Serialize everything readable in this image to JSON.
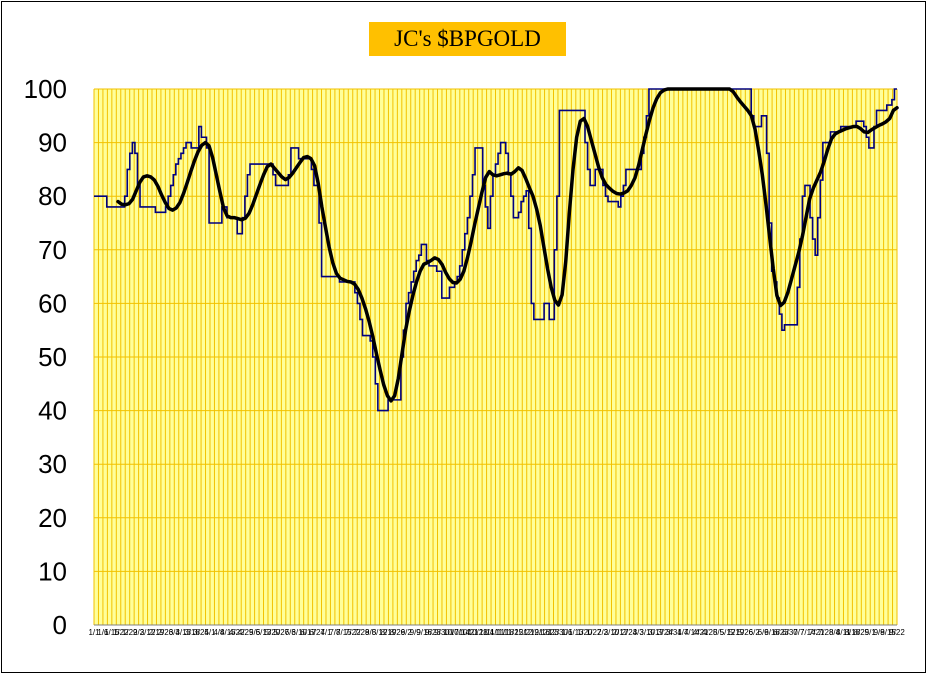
{
  "chart_data": {
    "type": "line",
    "title": "JC's $BPGOLD",
    "xlabel": "",
    "ylabel": "",
    "ylim": [
      0,
      100
    ],
    "y_ticks": [
      0,
      10,
      20,
      30,
      40,
      50,
      60,
      70,
      80,
      90,
      100
    ],
    "x_tick_labels": [
      "1/1",
      "1/6",
      "1/15",
      "1/22",
      "1/29",
      "2/3",
      "2/12",
      "2/19",
      "2/26",
      "3/4",
      "3/13",
      "3/18",
      "3/25",
      "4/1",
      "4/8",
      "4/15",
      "4/22",
      "4/29",
      "5/6",
      "5/13",
      "5/20",
      "5/27",
      "6/3",
      "6/10",
      "6/17",
      "6/24",
      "7/1",
      "7/8",
      "7/15",
      "7/22",
      "7/29",
      "8/5",
      "8/12",
      "8/19",
      "8/26",
      "9/2",
      "9/9",
      "9/16",
      "9/23",
      "9/30",
      "10/7",
      "10/14",
      "10/21",
      "10/28",
      "11/4",
      "11/11",
      "11/18",
      "11/25",
      "12/2",
      "12/9",
      "12/16",
      "12/23",
      "12/30",
      "1/6",
      "1/13",
      "1/20",
      "1/27",
      "2/3",
      "2/10",
      "2/17",
      "2/24",
      "3/3",
      "3/10",
      "3/17",
      "3/24",
      "3/31",
      "4/7",
      "4/14",
      "4/21",
      "4/28",
      "5/5",
      "5/12",
      "5/19",
      "5/26",
      "6/2",
      "6/9",
      "6/16",
      "6/23",
      "6/30",
      "7/7",
      "7/14",
      "7/21",
      "7/28",
      "8/4",
      "8/11",
      "8/18",
      "8/25",
      "9/1",
      "9/8",
      "9/15",
      "9/22"
    ],
    "grid": true,
    "background": "#ffff99",
    "grid_color": "#f2c200",
    "series": [
      {
        "name": "",
        "color": "#000080",
        "values": [
          80,
          80,
          80,
          80,
          80,
          78,
          78,
          78,
          78,
          78,
          78,
          78,
          80,
          85,
          88,
          90,
          88,
          82,
          78,
          78,
          78,
          78,
          78,
          78,
          77,
          77,
          77,
          77,
          78,
          80,
          82,
          84,
          86,
          87,
          88,
          89,
          90,
          90,
          89,
          89,
          89,
          93,
          91,
          91,
          89,
          75,
          75,
          75,
          75,
          75,
          78,
          78,
          76,
          76,
          76,
          76,
          73,
          73,
          76,
          80,
          84,
          86,
          86,
          86,
          86,
          86,
          86,
          86,
          86,
          86,
          84,
          82,
          82,
          82,
          82,
          82,
          84,
          89,
          89,
          89,
          87,
          87,
          87,
          87,
          87,
          85,
          82,
          82,
          75,
          65,
          65,
          65,
          65,
          65,
          65,
          65,
          64,
          64,
          64,
          64,
          64,
          64,
          62,
          60,
          57,
          54,
          54,
          54,
          53,
          50,
          45,
          40,
          40,
          40,
          40,
          42,
          42,
          42,
          42,
          42,
          50,
          55,
          60,
          62,
          64,
          66,
          68,
          69,
          71,
          71,
          68,
          67,
          67,
          67,
          66,
          66,
          61,
          61,
          61,
          63,
          63,
          64,
          65,
          67,
          70,
          73,
          76,
          80,
          84,
          89,
          89,
          89,
          82,
          78,
          74,
          80,
          84,
          86,
          88,
          90,
          90,
          88,
          84,
          80,
          76,
          76,
          77,
          79,
          80,
          81,
          74,
          60,
          57,
          57,
          57,
          57,
          60,
          60,
          57,
          57,
          70,
          80,
          96,
          96,
          96,
          96,
          96,
          96,
          96,
          96,
          96,
          96,
          90,
          85,
          82,
          82,
          85,
          85,
          85,
          82,
          80,
          79,
          79,
          79,
          79,
          78,
          80,
          82,
          85,
          85,
          85,
          85,
          85,
          85,
          88,
          91,
          95,
          100,
          100,
          100,
          100,
          100,
          100,
          100,
          100,
          100,
          100,
          100,
          100,
          100,
          100,
          100,
          100,
          100,
          100,
          100,
          100,
          100,
          100,
          100,
          100,
          100,
          100,
          100,
          100,
          100,
          100,
          100,
          100,
          100,
          100,
          100,
          100,
          100,
          100,
          100,
          100,
          95,
          93,
          93,
          93,
          95,
          95,
          88,
          75,
          66,
          64,
          61,
          58,
          55,
          56,
          56,
          56,
          56,
          56,
          63,
          72,
          80,
          82,
          82,
          76,
          72,
          69,
          76,
          83,
          90,
          90,
          90,
          92,
          92,
          92,
          92,
          93,
          93,
          93,
          93,
          93,
          93,
          94,
          94,
          94,
          93,
          91,
          89,
          89,
          93,
          96,
          96,
          96,
          96,
          97,
          97,
          98,
          100,
          100
        ]
      },
      {
        "name": "",
        "color": "#000000",
        "values": [
          79,
          78.5,
          78.4,
          78.6,
          79.4,
          81,
          82.6,
          83.6,
          83.8,
          83.6,
          83,
          81.8,
          80.2,
          78.8,
          77.7,
          77.4,
          77.8,
          78.8,
          80.5,
          82.5,
          84.6,
          86.6,
          88.3,
          89.5,
          90,
          89.4,
          87.2,
          84,
          80.8,
          77.8,
          76.3,
          76,
          76,
          75.8,
          75.6,
          75.9,
          76.8,
          78.4,
          80.3,
          82.2,
          84,
          85.5,
          86,
          85.2,
          84.4,
          83.6,
          83.1,
          83.5,
          84.3,
          85.3,
          86.3,
          87.2,
          87.4,
          87,
          85.7,
          82.4,
          78,
          74.2,
          70.5,
          67.6,
          65.6,
          64.7,
          64.4,
          64.1,
          64,
          63.6,
          62.6,
          61,
          59,
          56.6,
          53.8,
          50.6,
          47.6,
          44.8,
          42.8,
          41.8,
          42.8,
          46,
          50.5,
          55,
          58.5,
          61.5,
          64,
          66,
          67.3,
          67.6,
          68,
          68.5,
          68.2,
          67.3,
          65.8,
          64.6,
          63.9,
          63.8,
          64.5,
          66,
          68.5,
          71.5,
          74.8,
          77.8,
          80.8,
          83.5,
          84.6,
          84,
          83.8,
          84,
          84.2,
          84.3,
          84.1,
          84.6,
          85.3,
          84.8,
          83.3,
          81.6,
          80,
          77.6,
          74.5,
          70.5,
          66.5,
          63,
          60.6,
          59.7,
          61.6,
          67.8,
          77,
          85,
          91,
          94,
          94.5,
          93,
          90.5,
          88,
          85.5,
          83.5,
          82.2,
          81.5,
          80.9,
          80.5,
          80.4,
          80.6,
          81,
          82,
          83.4,
          85.7,
          88.6,
          91.5,
          94.2,
          96.5,
          98.2,
          99.3,
          99.8,
          100,
          100,
          100,
          100,
          100,
          100,
          100,
          100,
          100,
          100,
          100,
          100,
          100,
          100,
          100,
          100,
          100,
          100,
          99.5,
          98.5,
          97.6,
          96.8,
          96,
          95,
          92.5,
          88.5,
          84,
          78.5,
          72.5,
          66.5,
          61.5,
          59.6,
          60.2,
          62,
          64.5,
          67,
          69.5,
          72.5,
          76,
          79.5,
          81.5,
          83,
          84.5,
          86.5,
          88.8,
          90.7,
          91.6,
          92,
          92.3,
          92.6,
          92.8,
          93,
          93,
          92.6,
          92,
          91.9,
          92.4,
          92.8,
          93.2,
          93.5,
          93.9,
          94.5,
          96,
          96.5
        ]
      }
    ]
  }
}
